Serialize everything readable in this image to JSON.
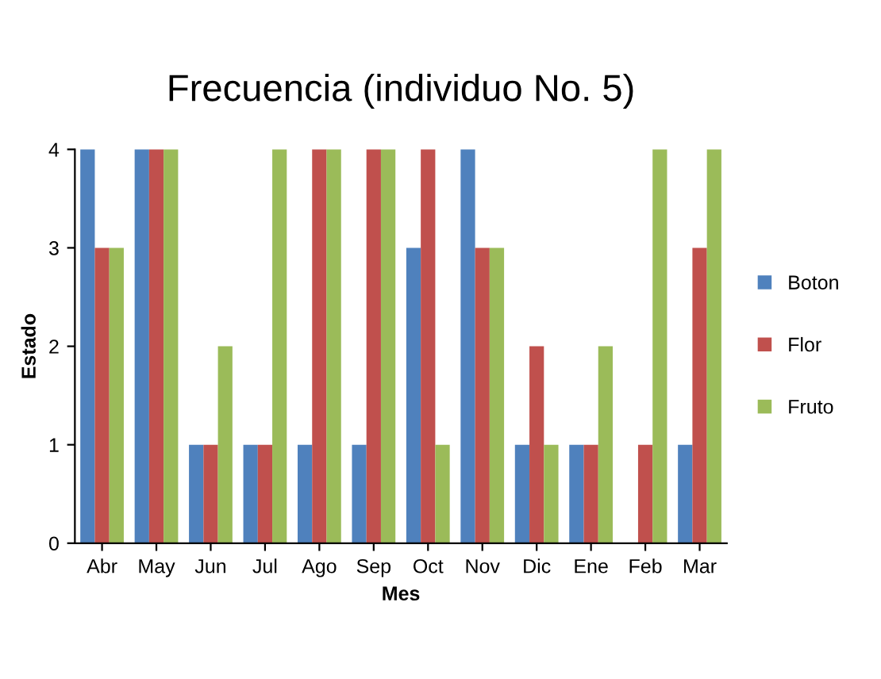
{
  "chart_data": {
    "type": "bar",
    "title": "Frecuencia (individuo No. 5)",
    "xlabel": "Mes",
    "ylabel": "Estado",
    "categories": [
      "Abr",
      "May",
      "Jun",
      "Jul",
      "Ago",
      "Sep",
      "Oct",
      "Nov",
      "Dic",
      "Ene",
      "Feb",
      "Mar"
    ],
    "series": [
      {
        "name": "Boton",
        "color": "#4f81bd",
        "values": [
          4,
          4,
          1,
          1,
          1,
          1,
          3,
          4,
          1,
          1,
          0,
          1
        ]
      },
      {
        "name": "Flor",
        "color": "#c0504d",
        "values": [
          3,
          4,
          1,
          1,
          4,
          4,
          4,
          3,
          2,
          1,
          1,
          3
        ]
      },
      {
        "name": "Fruto",
        "color": "#9bbb59",
        "values": [
          3,
          4,
          2,
          4,
          4,
          4,
          1,
          3,
          1,
          2,
          4,
          4
        ]
      }
    ],
    "ylim": [
      0,
      4
    ],
    "yticks": [
      0,
      1,
      2,
      3,
      4
    ],
    "grid": false,
    "legend": "right"
  }
}
